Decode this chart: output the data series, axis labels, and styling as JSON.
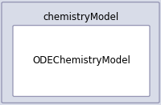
{
  "outer_label": "chemistryModel",
  "inner_label": "ODEChemistryModel",
  "outer_bg": "#d8dce8",
  "outer_border": "#8888aa",
  "inner_bg": "#ffffff",
  "inner_border": "#8888aa",
  "fig_bg": "#d8dce8",
  "outer_font_size": 8.5,
  "inner_font_size": 8.5,
  "text_color": "#000000",
  "figw": 2.0,
  "figh": 1.31,
  "dpi": 100
}
